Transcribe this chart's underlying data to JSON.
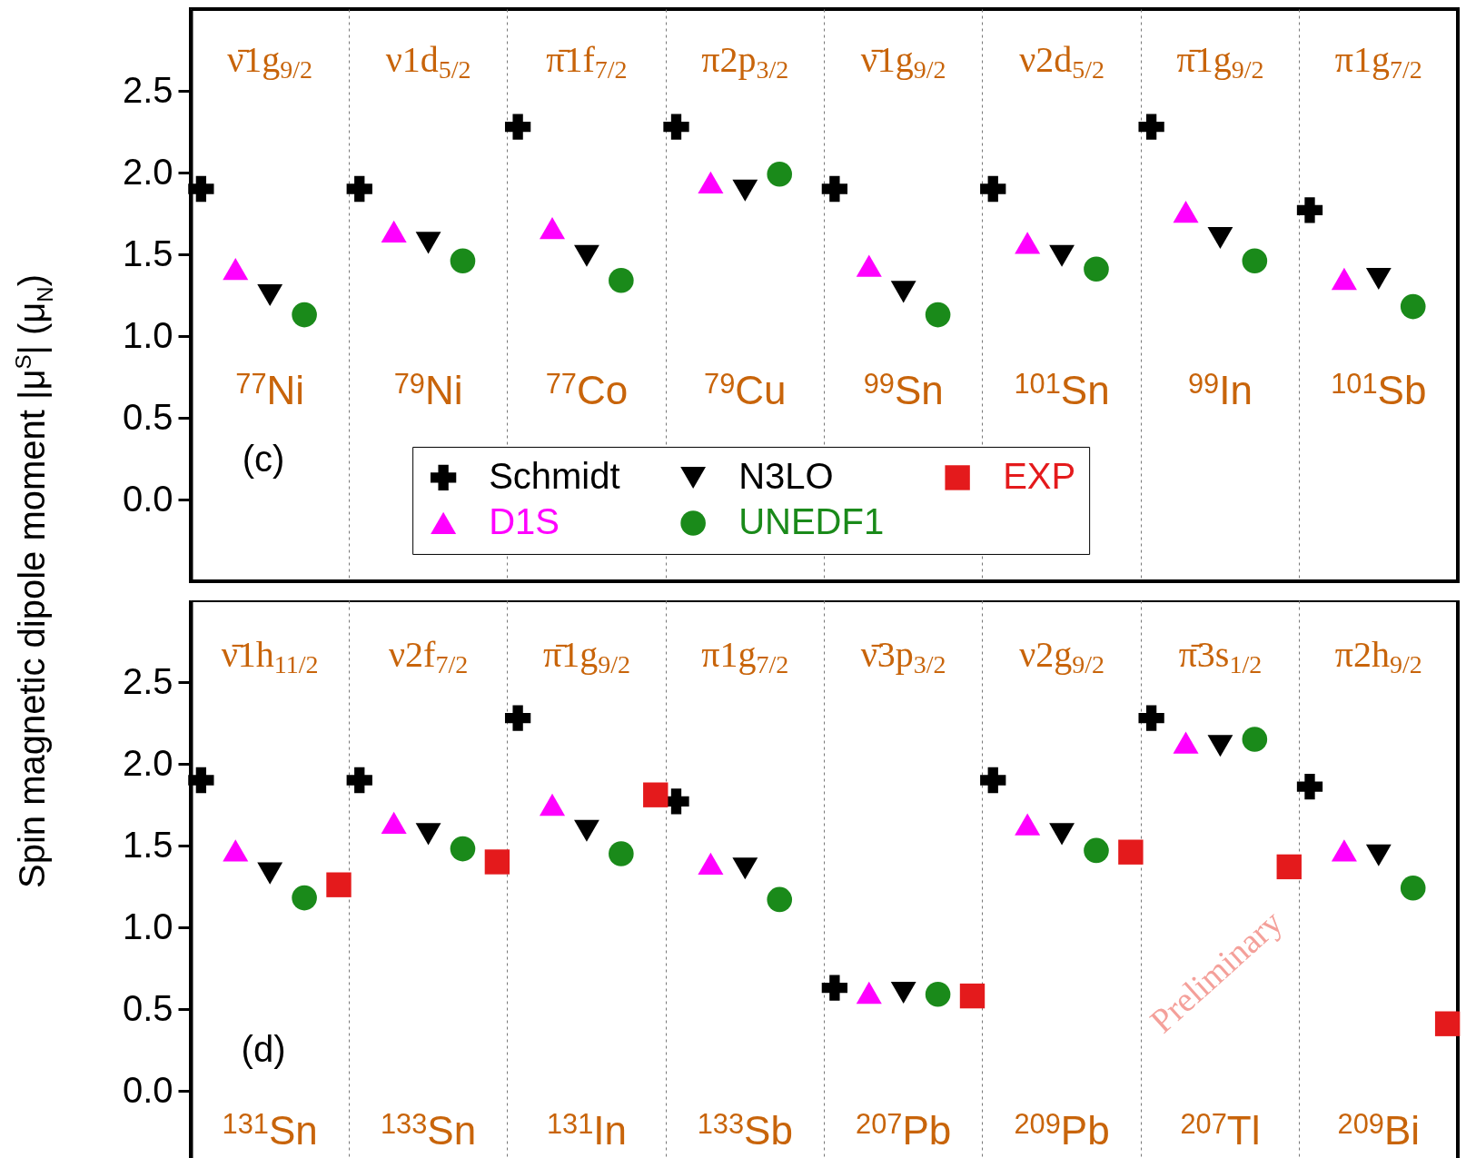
{
  "chart_data": [
    {
      "type": "scatter",
      "ylabel": "Spin magnetic dipole moment |μ$^{S}$| (μ$_{N}$)",
      "categories": [
        "$^{77}$Ni",
        "$^{79}$Ni",
        "$^{77}$Co",
        "$^{79}$Cu",
        "$^{99}$Sn",
        "$^{101}$Sn",
        "$^{99}$In",
        "$^{101}$Sb"
      ],
      "series": [
        {
          "name": "Schmidt",
          "color": "#000000",
          "marker": "cross",
          "values": [
            1.9,
            1.9,
            2.28,
            2.28,
            1.9,
            1.9,
            2.28,
            1.77
          ]
        },
        {
          "name": "D1S",
          "color": "#ff00ff",
          "marker": "triangle",
          "values": [
            1.41,
            1.64,
            1.66,
            1.94,
            1.43,
            1.57,
            1.76,
            1.35
          ]
        },
        {
          "name": "N3LO",
          "color": "#000000",
          "marker": "triangle-down",
          "values": [
            1.25,
            1.57,
            1.49,
            1.89,
            1.27,
            1.49,
            1.6,
            1.35
          ]
        },
        {
          "name": "UNEDF1",
          "color": "#1a8a1a",
          "marker": "circle",
          "values": [
            1.13,
            1.46,
            1.34,
            1.99,
            1.13,
            1.41,
            1.46,
            1.18
          ]
        },
        {
          "name": "EXP",
          "color": "#e41a1c",
          "marker": "square",
          "values": [
            null,
            null,
            null,
            null,
            null,
            null,
            null,
            null
          ]
        }
      ],
      "ylim": [
        -0.5,
        3.0
      ],
      "yticks": [
        {
          "value": 0,
          "label": "0.0"
        },
        0.5,
        {
          "value": 1,
          "label": "1.0"
        },
        1.5,
        {
          "value": 2,
          "label": "2.0"
        },
        2.5
      ],
      "grid": "x",
      "tick_labels": "y",
      "legend": "bottom",
      "annotations": [
        "ν̄1g$_{9/2}$",
        "ν1d$_{5/2}$",
        "π̄1f$_{7/2}$",
        "π2p$_{3/2}$",
        "ν̄1g$_{9/2}$",
        "ν2d$_{5/2}$",
        "π̄1g$_{9/2}$",
        "π1g$_{7/2}$",
        "(c)"
      ]
    },
    {
      "type": "scatter",
      "categories": [
        "$^{131}$Sn",
        "$^{133}$Sn",
        "$^{131}$In",
        "$^{133}$Sb",
        "$^{207}$Pb",
        "$^{209}$Pb",
        "$^{207}$Tl",
        "$^{209}$Bi"
      ],
      "series": [
        {
          "color": "#000000",
          "marker": "cross",
          "values": [
            1.9,
            1.9,
            2.28,
            1.77,
            0.63,
            1.9,
            2.28,
            1.86
          ]
        },
        {
          "color": "#ff00ff",
          "marker": "triangle",
          "values": [
            1.47,
            1.64,
            1.75,
            1.39,
            0.6,
            1.63,
            2.13,
            1.47
          ]
        },
        {
          "color": "#000000",
          "marker": "triangle-down",
          "values": [
            1.33,
            1.57,
            1.59,
            1.36,
            0.6,
            1.57,
            2.11,
            1.44
          ]
        },
        {
          "color": "#1a8a1a",
          "marker": "circle",
          "values": [
            1.18,
            1.48,
            1.45,
            1.17,
            0.59,
            1.47,
            2.15,
            1.24
          ]
        },
        {
          "color": "#e41a1c",
          "marker": "square",
          "values": [
            1.26,
            1.4,
            1.81,
            null,
            0.58,
            1.46,
            1.37,
            0.41
          ]
        }
      ],
      "ylim": [
        -0.5,
        3.0
      ],
      "yticks": [
        {
          "value": 0,
          "label": "0.0"
        },
        0.5,
        {
          "value": 1,
          "label": "1.0"
        },
        1.5,
        {
          "value": 2,
          "label": "2.0"
        },
        2.5
      ],
      "grid": "x",
      "tick_labels": "y",
      "annotations": [
        "ν̄1h$_{11/2}$",
        "ν2f$_{7/2}$",
        "π̄1g$_{9/2}$",
        "π1g$_{7/2}$",
        "ν̄3p$_{3/2}$",
        "ν2g$_{9/2}$",
        "π̄3s$_{1/2}$",
        "π2h$_{9/2}$",
        "(d)",
        "Preliminary"
      ]
    }
  ]
}
